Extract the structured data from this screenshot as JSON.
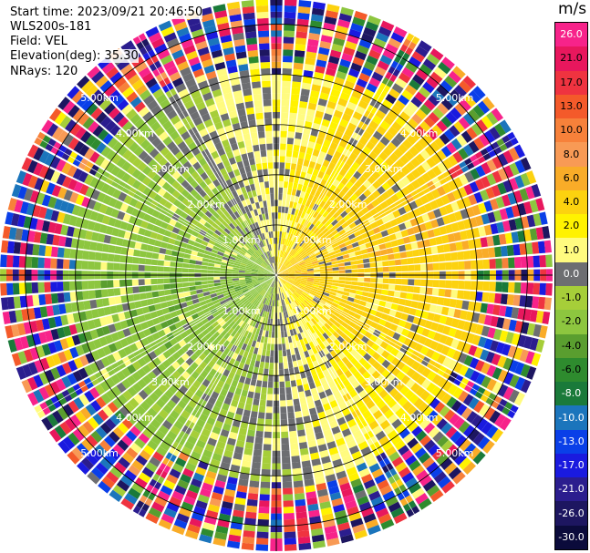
{
  "header": {
    "start_time": "Start time: 2023/09/21 20:46:50",
    "instrument": "WLS200s-181",
    "field": "Field: VEL",
    "elevation": "Elevation(deg): 35.30",
    "nrays": "NRays: 120"
  },
  "colorbar": {
    "unit": "m/s",
    "ticks": [
      "26.0",
      "21.0",
      "17.0",
      "13.0",
      "10.0",
      "8.0",
      "6.0",
      "4.0",
      "2.0",
      "1.0",
      "0.0",
      "-1.0",
      "-2.0",
      "-4.0",
      "-6.0",
      "-8.0",
      "-10.0",
      "-13.0",
      "-17.0",
      "-21.0",
      "-26.0",
      "-30.0"
    ],
    "colors": [
      "#f7238a",
      "#e8175d",
      "#ef3340",
      "#f45a2a",
      "#f7813a",
      "#f89a55",
      "#f9ac28",
      "#fcd20f",
      "#fff200",
      "#fffb7f",
      "#6d6e71",
      "#a6ce39",
      "#8dc63f",
      "#5a9e2f",
      "#2e8b2e",
      "#1a7a3a",
      "#1b75bc",
      "#0a3fe8",
      "#1a1adf",
      "#2b1d8e",
      "#1d1660",
      "#0b0b3b"
    ]
  },
  "chart_data": {
    "type": "ppi",
    "field": "VEL",
    "units": "m/s",
    "elevation_deg": 35.3,
    "nrays": 120,
    "range_rings_km": [
      {
        "value": 1,
        "label": "1.00km"
      },
      {
        "value": 2,
        "label": "2.00km"
      },
      {
        "value": 3,
        "label": "3.00km"
      },
      {
        "value": 4,
        "label": "4.00km"
      },
      {
        "value": 5,
        "label": "5.00km"
      }
    ],
    "max_range_km": 5.5,
    "pattern": {
      "east_sector": "positive (yellow 2-4 m/s)",
      "west_sector": "negative (green -2 to -4 m/s)",
      "outer_ring": "noise"
    }
  }
}
